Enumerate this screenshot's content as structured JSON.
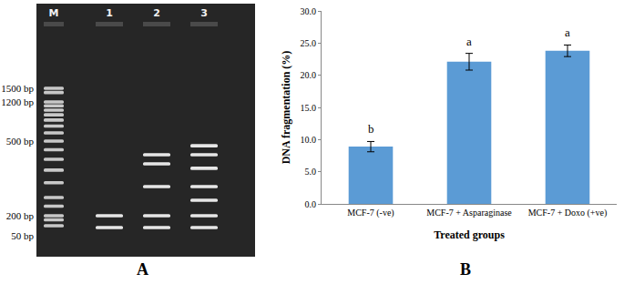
{
  "panel_labels": [
    "A",
    "B"
  ],
  "gel": {
    "markers": [
      {
        "label": "1500 bp",
        "bp": 1500
      },
      {
        "label": "1200 bp",
        "bp": 1200
      },
      {
        "label": "500 bp",
        "bp": 500
      },
      {
        "label": "200 bp",
        "bp": 200
      },
      {
        "label": "50 bp",
        "bp": 50
      }
    ],
    "lanes": [
      {
        "label": "M",
        "bands_bp": [
          1500,
          1400,
          1200,
          1100,
          1000,
          900,
          800,
          700,
          600,
          500,
          450,
          400,
          350,
          300,
          250,
          225,
          200,
          150,
          100
        ]
      },
      {
        "label": "1",
        "bands_bp": [
          200,
          88
        ]
      },
      {
        "label": "2",
        "bands_bp": [
          423,
          378,
          286,
          200,
          88
        ]
      },
      {
        "label": "3",
        "bands_bp": [
          472,
          423,
          358,
          286,
          242,
          200,
          88
        ]
      }
    ]
  },
  "chart_data": {
    "type": "bar",
    "categories": [
      "MCF-7 (-ve)",
      "MCF-7 + Asparaginase",
      "MCF-7 + Doxo (+ve)"
    ],
    "values": [
      8.9,
      22.1,
      23.8
    ],
    "errors": [
      0.8,
      1.3,
      0.9
    ],
    "color": "#5b9bd5",
    "y_label": "DNA fragmentation (%)",
    "x_label": "Treated groups",
    "ylim": [
      0,
      30
    ],
    "yticks": [
      {
        "value": 0,
        "label": "0.0"
      },
      {
        "value": 5,
        "label": "5.0"
      },
      {
        "value": 10,
        "label": "10.0"
      },
      {
        "value": 15,
        "label": "15.0"
      },
      {
        "value": 20,
        "label": "20.0"
      },
      {
        "value": 25,
        "label": "25.0"
      },
      {
        "value": 30,
        "label": "30.0"
      }
    ],
    "annotations": [
      {
        "category": "MCF-7 (-ve)",
        "text": "b"
      },
      {
        "category": "MCF-7 + Asparaginase",
        "text": "a"
      },
      {
        "category": "MCF-7 + Doxo (+ve)",
        "text": "a"
      }
    ],
    "grid": false
  }
}
